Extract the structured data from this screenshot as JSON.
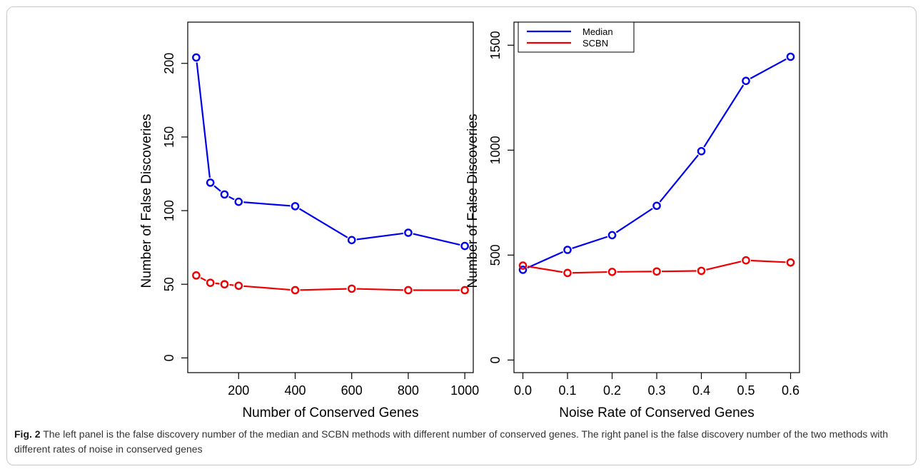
{
  "chart_data": [
    {
      "type": "line",
      "xlabel": "Number of Conserved Genes",
      "ylabel": "Number of False Discoveries",
      "xlim": [
        20,
        1030
      ],
      "ylim": [
        -10,
        228
      ],
      "xticks": [
        200,
        400,
        600,
        800,
        1000
      ],
      "yticks": [
        0,
        50,
        100,
        150,
        200
      ],
      "x": [
        50,
        100,
        150,
        200,
        400,
        600,
        800,
        1000
      ],
      "series": [
        {
          "color": "#0000ee",
          "values": [
            204,
            119,
            111,
            106,
            103,
            80,
            85,
            76
          ]
        },
        {
          "color": "#ee0000",
          "values": [
            56,
            51,
            50,
            49,
            46,
            47,
            46,
            46
          ]
        }
      ],
      "legend": false,
      "grid": false
    },
    {
      "type": "line",
      "xlabel": "Noise Rate of Conserved Genes",
      "ylabel": "Number of False Discoveries",
      "xlim": [
        -0.02,
        0.62
      ],
      "ylim": [
        -60,
        1610
      ],
      "xticks": [
        "0.0",
        "0.1",
        "0.2",
        "0.3",
        "0.4",
        "0.5",
        "0.6"
      ],
      "yticks": [
        0,
        500,
        1000,
        1500
      ],
      "x": [
        0.0,
        0.1,
        0.2,
        0.3,
        0.4,
        0.5,
        0.6
      ],
      "series": [
        {
          "name": "Median",
          "color": "#0000ee",
          "values": [
            430,
            525,
            595,
            735,
            995,
            1330,
            1445
          ]
        },
        {
          "name": "SCBN",
          "color": "#ee0000",
          "values": [
            450,
            415,
            420,
            422,
            425,
            475,
            465
          ]
        }
      ],
      "legend": true,
      "legend_position": "top-left",
      "grid": false
    }
  ],
  "caption": {
    "label": "Fig. 2",
    "text": " The left panel is the false discovery number of the median and SCBN methods with different number of conserved genes. The right panel is the false discovery number of the two methods with different rates of noise in conserved genes"
  }
}
